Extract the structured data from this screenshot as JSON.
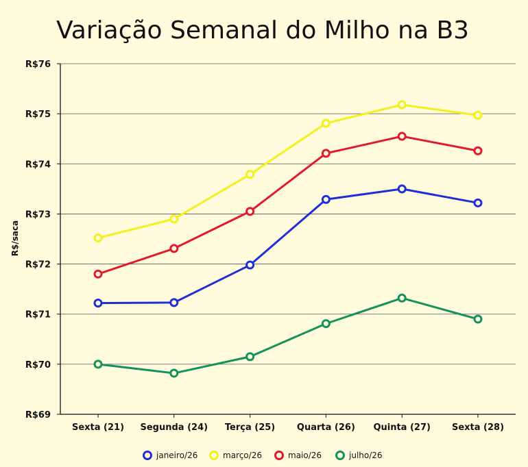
{
  "chart_data": {
    "type": "line",
    "title": "Variação Semanal do Milho na B3",
    "xlabel": "",
    "ylabel": "R$/saca",
    "categories": [
      "Sexta (21)",
      "Segunda (24)",
      "Terça (25)",
      "Quarta (26)",
      "Quinta (27)",
      "Sexta (28)"
    ],
    "ylim": [
      69,
      76
    ],
    "yticks": [
      69,
      70,
      71,
      72,
      73,
      74,
      75,
      76
    ],
    "ytick_labels": [
      "R$69",
      "R$70",
      "R$71",
      "R$72",
      "R$73",
      "R$74",
      "R$75",
      "R$76"
    ],
    "grid": true,
    "legend_position": "bottom",
    "series": [
      {
        "name": "janeiro/26",
        "color": "#1f2fd6",
        "values": [
          71.22,
          71.23,
          71.98,
          73.29,
          73.5,
          73.22
        ]
      },
      {
        "name": "março/26",
        "color": "#f4f01e",
        "values": [
          72.52,
          72.9,
          73.79,
          74.81,
          75.18,
          74.97
        ]
      },
      {
        "name": "maio/26",
        "color": "#e01b2d",
        "values": [
          71.8,
          72.31,
          73.05,
          74.21,
          74.55,
          74.26
        ]
      },
      {
        "name": "julho/26",
        "color": "#12935c",
        "values": [
          70.0,
          69.82,
          70.15,
          70.81,
          71.32,
          70.9
        ]
      }
    ]
  }
}
